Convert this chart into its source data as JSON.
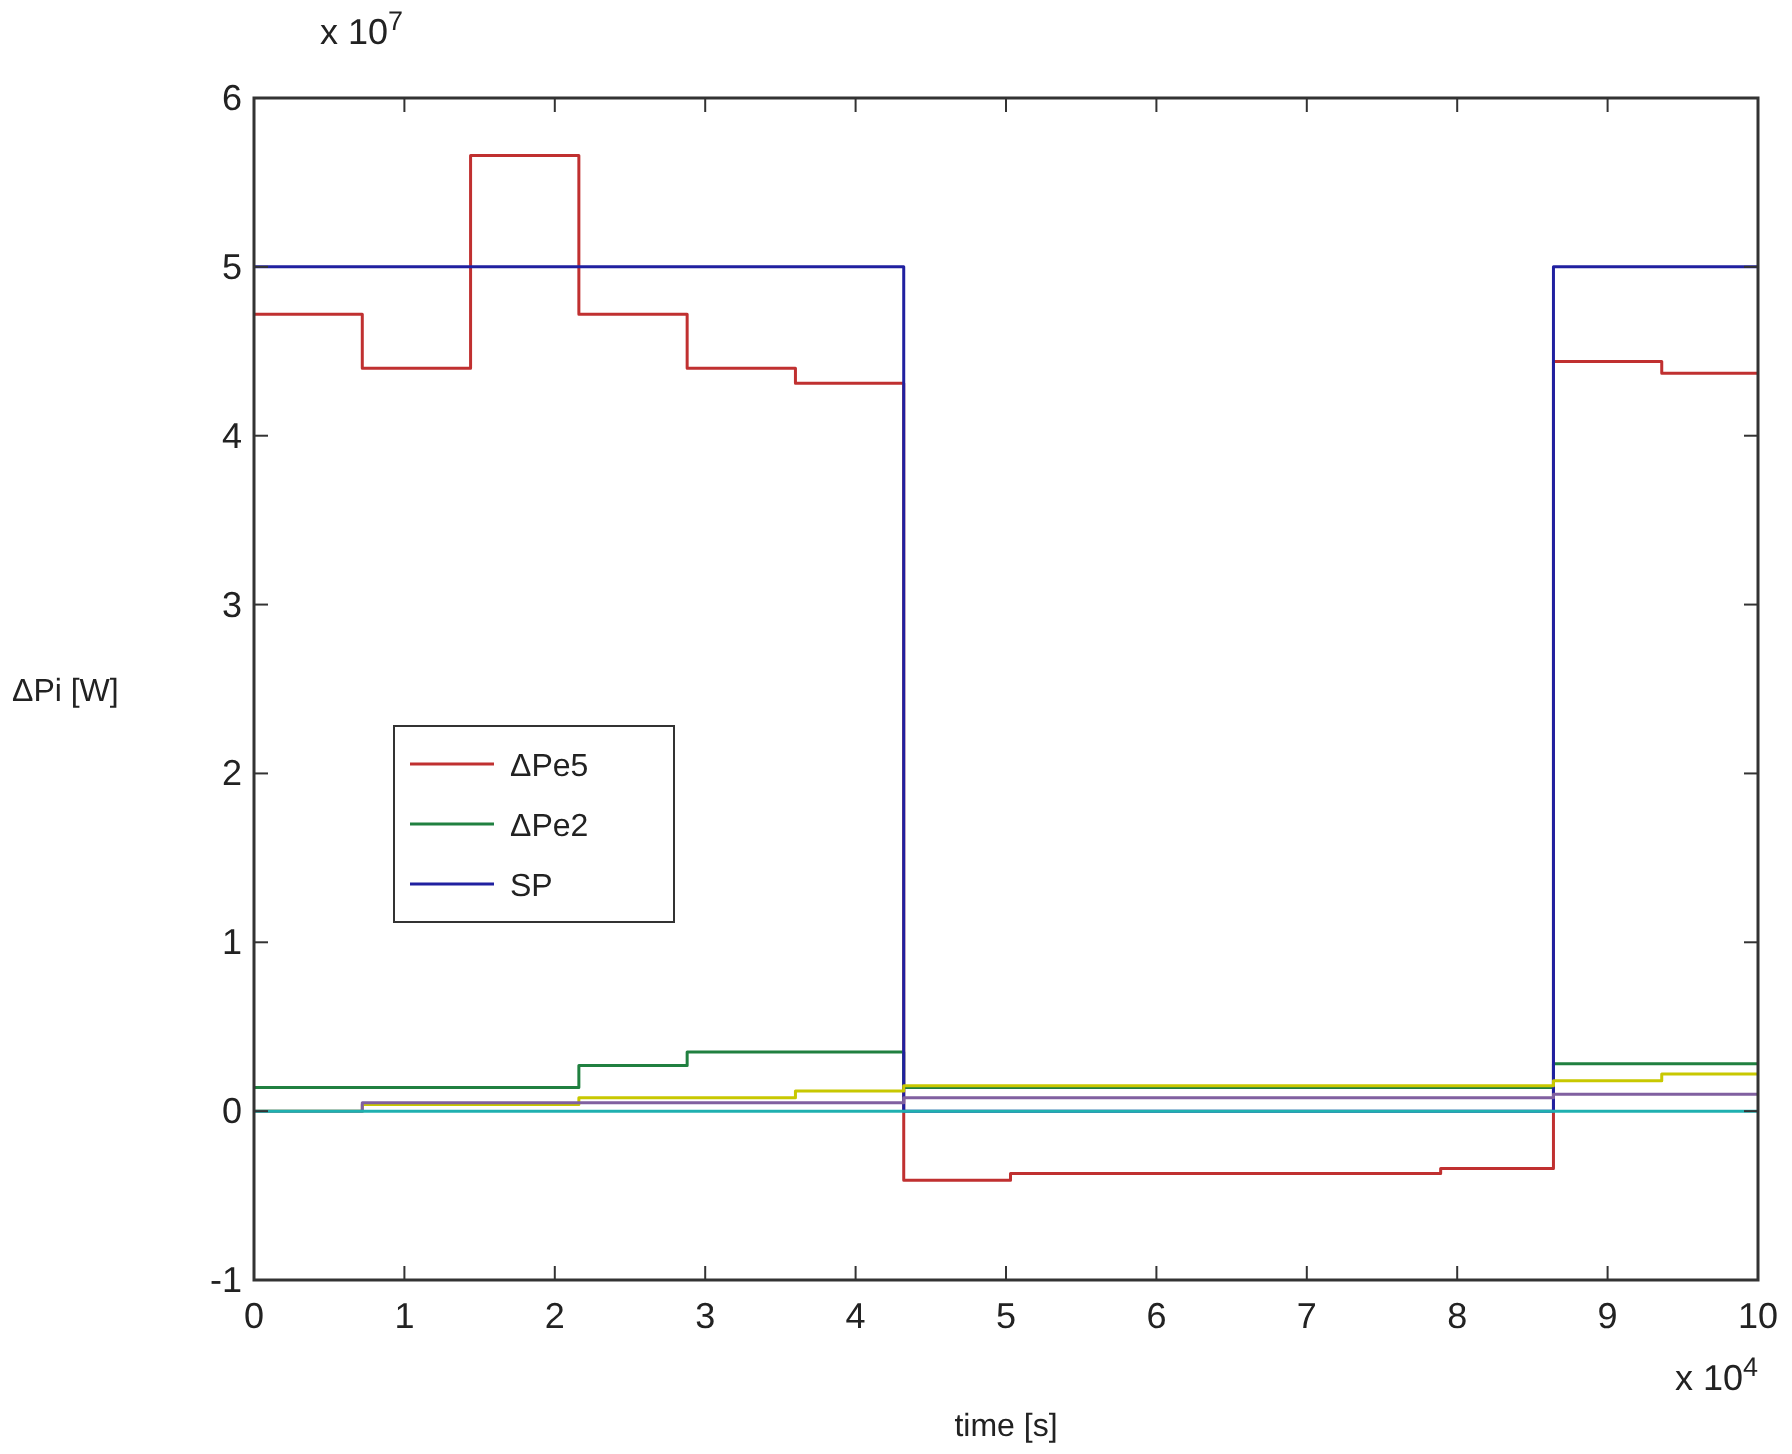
{
  "chart_data": {
    "type": "step",
    "xlabel": "time [s]",
    "ylabel": "ΔPi [W]",
    "annotations": [
      "x 10$^{7}$",
      "x 10$^{4}$"
    ],
    "xlim": [
      0,
      10
    ],
    "xticks": [
      0,
      1,
      2,
      3,
      4,
      5,
      6,
      7,
      8,
      9,
      10
    ],
    "ylim": [
      -1,
      6
    ],
    "yticks": [
      -1,
      0,
      1,
      2,
      3,
      4,
      5,
      6
    ],
    "grid": false,
    "legend": "left",
    "series": [
      {
        "name": "ΔPe5",
        "color": "#c03030",
        "x": [
          0,
          0.72,
          1.44,
          2.16,
          2.88,
          3.6,
          4.32,
          5.03,
          7.89,
          8.64,
          9.36,
          10
        ],
        "values": [
          4.72,
          4.4,
          5.66,
          4.72,
          4.4,
          4.31,
          -0.41,
          -0.37,
          -0.34,
          4.44,
          4.37,
          4.37
        ]
      },
      {
        "name": "ΔPe2",
        "color": "#208040",
        "x": [
          0,
          2.16,
          2.88,
          4.32,
          8.64,
          10
        ],
        "values": [
          0.14,
          0.27,
          0.35,
          0.14,
          0.28,
          0.28
        ]
      },
      {
        "name": "SP",
        "color": "#2020a0",
        "x": [
          0,
          4.32,
          8.64,
          10
        ],
        "values": [
          5,
          0,
          5,
          5
        ]
      },
      {
        "color": "#c8c800",
        "x": [
          0,
          0.72,
          2.16,
          3.6,
          4.32,
          8.64,
          9.36,
          10
        ],
        "values": [
          0,
          0.04,
          0.08,
          0.12,
          0.15,
          0.18,
          0.22,
          0.22
        ]
      },
      {
        "color": "#8060a0",
        "x": [
          0,
          0.72,
          4.32,
          8.64,
          10
        ],
        "values": [
          0,
          0.05,
          0.08,
          0.1,
          0.1
        ]
      },
      {
        "color": "#20b0b0",
        "x": [
          0,
          10
        ],
        "values": [
          0,
          0
        ]
      }
    ]
  }
}
